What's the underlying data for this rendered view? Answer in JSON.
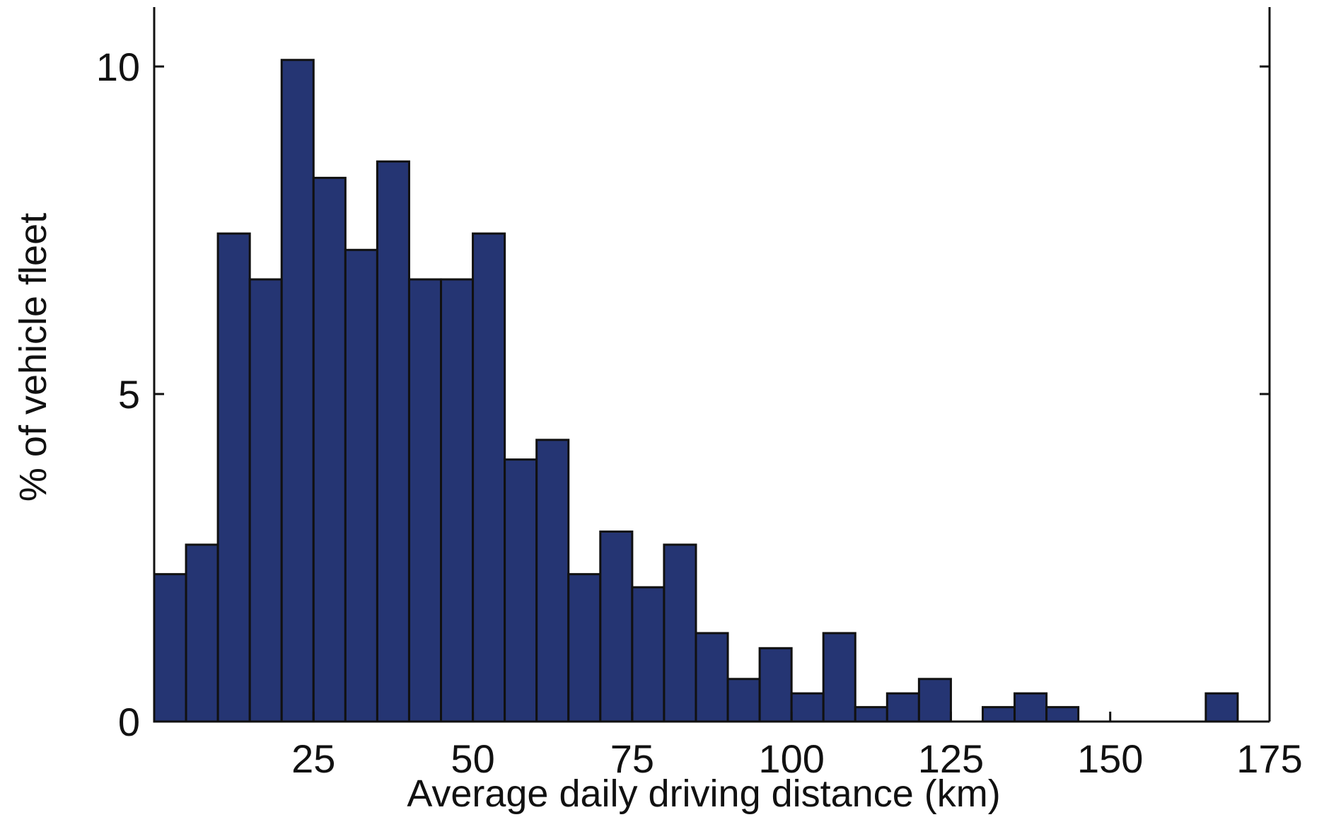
{
  "chart_data": {
    "type": "bar",
    "title": "",
    "xlabel": "Average daily driving distance (km)",
    "ylabel": "% of vehicle fleet",
    "xlim": [
      0,
      175
    ],
    "ylim": [
      0,
      10
    ],
    "bin_width": 5,
    "xticks": [
      25,
      50,
      75,
      100,
      125,
      150,
      175
    ],
    "yticks": [
      0,
      5,
      10
    ],
    "grid": false,
    "legend": "none",
    "bar_color": "#253573",
    "bins": [
      {
        "x": 5,
        "value": 2.25
      },
      {
        "x": 10,
        "value": 2.7
      },
      {
        "x": 15,
        "value": 7.45
      },
      {
        "x": 20,
        "value": 6.75
      },
      {
        "x": 25,
        "value": 10.1
      },
      {
        "x": 30,
        "value": 8.3
      },
      {
        "x": 35,
        "value": 7.2
      },
      {
        "x": 40,
        "value": 8.55
      },
      {
        "x": 45,
        "value": 6.75
      },
      {
        "x": 50,
        "value": 6.75
      },
      {
        "x": 55,
        "value": 7.45
      },
      {
        "x": 60,
        "value": 4.0
      },
      {
        "x": 65,
        "value": 4.3
      },
      {
        "x": 70,
        "value": 2.25
      },
      {
        "x": 75,
        "value": 2.9
      },
      {
        "x": 80,
        "value": 2.05
      },
      {
        "x": 85,
        "value": 2.7
      },
      {
        "x": 90,
        "value": 1.35
      },
      {
        "x": 95,
        "value": 0.65
      },
      {
        "x": 100,
        "value": 1.12
      },
      {
        "x": 105,
        "value": 0.43
      },
      {
        "x": 110,
        "value": 1.35
      },
      {
        "x": 115,
        "value": 0.22
      },
      {
        "x": 120,
        "value": 0.43
      },
      {
        "x": 125,
        "value": 0.65
      },
      {
        "x": 130,
        "value": 0
      },
      {
        "x": 135,
        "value": 0.22
      },
      {
        "x": 140,
        "value": 0.43
      },
      {
        "x": 145,
        "value": 0.22
      },
      {
        "x": 150,
        "value": 0
      },
      {
        "x": 155,
        "value": 0
      },
      {
        "x": 160,
        "value": 0
      },
      {
        "x": 165,
        "value": 0
      },
      {
        "x": 170,
        "value": 0.43
      }
    ]
  }
}
